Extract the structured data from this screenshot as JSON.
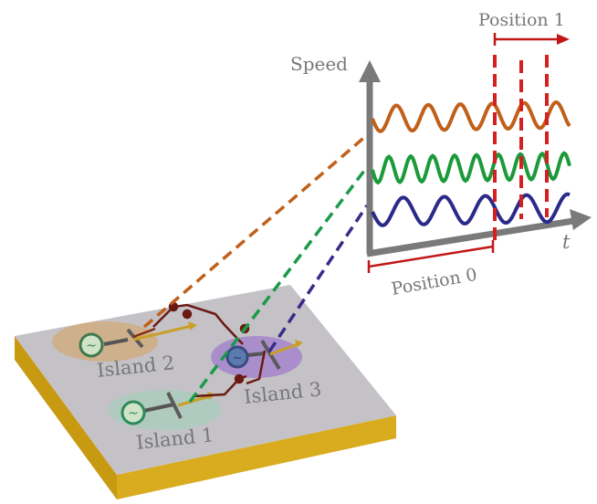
{
  "axes": {
    "y_label": "Speed",
    "x_label": "t"
  },
  "periods": {
    "position_0": "Position 0",
    "position_1": "Position 1"
  },
  "islands": [
    {
      "label": "Island 1",
      "color": "#4a9a5a"
    },
    {
      "label": "Island 2",
      "color": "#c0701a"
    },
    {
      "label": "Island 3",
      "color": "#6a4aa8"
    }
  ],
  "curve_colors": {
    "island_2": "#c0601a",
    "island_1": "#1a9a3a",
    "island_3": "#2a2a8a"
  },
  "accent": {
    "bracket": "#c01818",
    "axis": "#7a7a7a",
    "board_top": "#c4c2c6",
    "board_side": "#d4a418"
  }
}
